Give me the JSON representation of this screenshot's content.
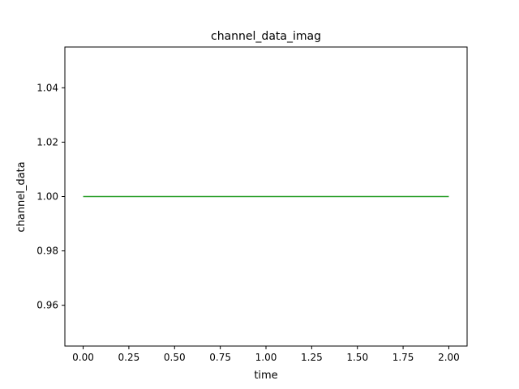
{
  "chart_data": {
    "type": "line",
    "title": "channel_data_imag",
    "xlabel": "time",
    "ylabel": "channel_data",
    "xlim": [
      -0.1,
      2.1
    ],
    "ylim": [
      0.945,
      1.055
    ],
    "x_ticks": [
      0.0,
      0.25,
      0.5,
      0.75,
      1.0,
      1.25,
      1.5,
      1.75,
      2.0
    ],
    "x_tick_labels": [
      "0.00",
      "0.25",
      "0.50",
      "0.75",
      "1.00",
      "1.25",
      "1.50",
      "1.75",
      "2.00"
    ],
    "y_ticks": [
      0.96,
      0.98,
      1.0,
      1.02,
      1.04
    ],
    "y_tick_labels": [
      "0.96",
      "0.98",
      "1.00",
      "1.02",
      "1.04"
    ],
    "grid": false,
    "series": [
      {
        "color": "#2ca02c",
        "x": [
          0.0,
          2.0
        ],
        "y": [
          1.0,
          1.0
        ]
      }
    ]
  }
}
